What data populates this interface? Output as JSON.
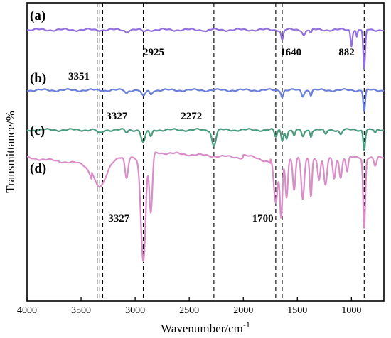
{
  "chart_data": {
    "type": "line",
    "title": "",
    "xlabel": "Wavenumber/cm",
    "xlabel_superscript": "-1",
    "ylabel": "Transmittance/%",
    "xlim": [
      4000,
      700
    ],
    "x_ticks": [
      4000,
      3500,
      3000,
      2500,
      2000,
      1500,
      1000
    ],
    "grid": false,
    "legend": "none",
    "y_ticks_shown": false,
    "reference_lines": [
      3351,
      3327,
      3300,
      2925,
      2272,
      1700,
      1640,
      882
    ],
    "annotations": [
      {
        "text": "2925",
        "x": 2830,
        "y_level": "a"
      },
      {
        "text": "1640",
        "x": 1560,
        "y_level": "a"
      },
      {
        "text": "882",
        "x": 1045,
        "y_level": "a"
      },
      {
        "text": "3351",
        "x": 3520,
        "y_level": "b"
      },
      {
        "text": "3327",
        "x": 3170,
        "y_level": "c"
      },
      {
        "text": "2272",
        "x": 2480,
        "y_level": "c"
      },
      {
        "text": "3327",
        "x": 3150,
        "y_level": "d"
      },
      {
        "text": "1700",
        "x": 1820,
        "y_level": "d"
      }
    ],
    "series": [
      {
        "label": "(a)",
        "color": "#9370db",
        "baseline": 0.0,
        "peaks": [
          {
            "x": 3080,
            "depth": 3,
            "width": 12
          },
          {
            "x": 2925,
            "depth": 2,
            "width": 20
          },
          {
            "x": 2340,
            "depth": 2,
            "width": 10
          },
          {
            "x": 1640,
            "depth": 14,
            "width": 10
          },
          {
            "x": 1440,
            "depth": 7,
            "width": 12
          },
          {
            "x": 1375,
            "depth": 5,
            "width": 8
          },
          {
            "x": 1000,
            "depth": 22,
            "width": 8
          },
          {
            "x": 950,
            "depth": 10,
            "width": 6
          },
          {
            "x": 882,
            "depth": 58,
            "width": 9
          }
        ]
      },
      {
        "label": "(b)",
        "color": "#6a7fdb",
        "baseline": 0.0,
        "peaks": [
          {
            "x": 3080,
            "depth": 4,
            "width": 12
          },
          {
            "x": 2925,
            "depth": 9,
            "width": 18
          },
          {
            "x": 2855,
            "depth": 6,
            "width": 12
          },
          {
            "x": 1640,
            "depth": 9,
            "width": 10
          },
          {
            "x": 1450,
            "depth": 8,
            "width": 12
          },
          {
            "x": 1375,
            "depth": 7,
            "width": 8
          },
          {
            "x": 882,
            "depth": 30,
            "width": 9
          }
        ]
      },
      {
        "label": "(c)",
        "color": "#4a9c7e",
        "baseline": 0.0,
        "peaks": [
          {
            "x": 3327,
            "depth": 5,
            "width": 22
          },
          {
            "x": 3080,
            "depth": 4,
            "width": 12
          },
          {
            "x": 2925,
            "depth": 18,
            "width": 18
          },
          {
            "x": 2855,
            "depth": 10,
            "width": 12
          },
          {
            "x": 2272,
            "depth": 22,
            "width": 18
          },
          {
            "x": 1700,
            "depth": 10,
            "width": 12
          },
          {
            "x": 1640,
            "depth": 14,
            "width": 10
          },
          {
            "x": 1600,
            "depth": 12,
            "width": 10
          },
          {
            "x": 1530,
            "depth": 9,
            "width": 10
          },
          {
            "x": 1450,
            "depth": 10,
            "width": 12
          },
          {
            "x": 1375,
            "depth": 9,
            "width": 8
          },
          {
            "x": 1240,
            "depth": 7,
            "width": 12
          },
          {
            "x": 1100,
            "depth": 6,
            "width": 12
          },
          {
            "x": 882,
            "depth": 28,
            "width": 9
          },
          {
            "x": 780,
            "depth": 5,
            "width": 10
          }
        ]
      },
      {
        "label": "(d)",
        "color": "#d98ec8",
        "baseline": 0.0,
        "peaks": [
          {
            "x": 3327,
            "depth": 42,
            "width": 60
          },
          {
            "x": 3080,
            "depth": 30,
            "width": 14
          },
          {
            "x": 2925,
            "depth": 145,
            "width": 22
          },
          {
            "x": 2855,
            "depth": 85,
            "width": 14
          },
          {
            "x": 1700,
            "depth": 65,
            "width": 18
          },
          {
            "x": 1650,
            "depth": 85,
            "width": 12
          },
          {
            "x": 1600,
            "depth": 55,
            "width": 12
          },
          {
            "x": 1530,
            "depth": 45,
            "width": 12
          },
          {
            "x": 1450,
            "depth": 60,
            "width": 14
          },
          {
            "x": 1375,
            "depth": 55,
            "width": 10
          },
          {
            "x": 1300,
            "depth": 32,
            "width": 12
          },
          {
            "x": 1240,
            "depth": 40,
            "width": 14
          },
          {
            "x": 1160,
            "depth": 30,
            "width": 12
          },
          {
            "x": 1100,
            "depth": 28,
            "width": 12
          },
          {
            "x": 1040,
            "depth": 20,
            "width": 10
          },
          {
            "x": 882,
            "depth": 100,
            "width": 10
          },
          {
            "x": 780,
            "depth": 12,
            "width": 12
          }
        ]
      }
    ]
  }
}
